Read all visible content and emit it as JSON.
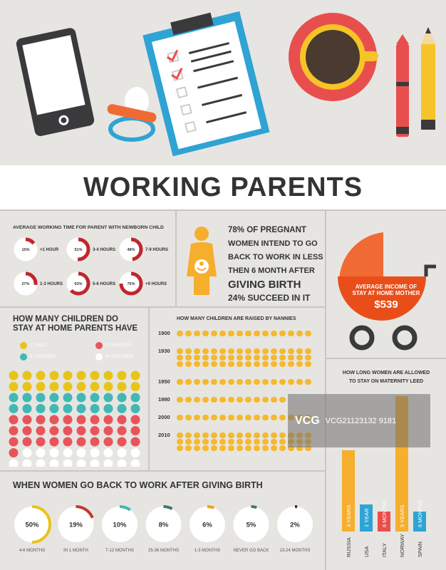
{
  "title": "WORKING PARENTS",
  "working_time": {
    "title": "AVERAGE WORKING TIME FOR PARENT WITH NEWBORN CHILD",
    "items": [
      {
        "pct": "15%",
        "label": ">1 HOUR",
        "value": 0.15
      },
      {
        "pct": "51%",
        "label": "3-4 HOURS",
        "value": 0.51
      },
      {
        "pct": "48%",
        "label": "7-9 HOURS",
        "value": 0.48
      },
      {
        "pct": "27%",
        "label": "1-3 HOURS",
        "value": 0.27
      },
      {
        "pct": "63%",
        "label": "5-6 HOURS",
        "value": 0.63
      },
      {
        "pct": "75%",
        "label": "+9 HOURS",
        "value": 0.75
      }
    ]
  },
  "pregnant": {
    "line1": "78% OF PREGNANT",
    "line2": "WOMEN INTEND TO GO",
    "line3": "BACK TO WORK IN LESS",
    "line4": "THEN 6 MONTH AFTER",
    "line5": "GIVING BIRTH",
    "line6": "24% SUCCEED IN IT"
  },
  "income": {
    "line1": "AVERAGE INCOME OF",
    "line2": "STAY AT HOME MOTHER",
    "amount": "$539"
  },
  "stay_home": {
    "title_line1": "HOW MANY CHILDREN DO",
    "title_line2": "STAY AT HOME PARENTS HAVE",
    "legend": [
      {
        "label": "1 CHILD",
        "color": "#e8c41a"
      },
      {
        "label": "2 CHILDREN",
        "color": "#e9545a"
      },
      {
        "label": "3 CHILDREN",
        "color": "#41b8b4"
      },
      {
        "label": "4+ CHILDREN",
        "color": "#ffffff"
      }
    ],
    "rows": [
      [
        "#e8c41a",
        "#e8c41a",
        "#e8c41a",
        "#e8c41a",
        "#e8c41a",
        "#e8c41a",
        "#e8c41a",
        "#e8c41a",
        "#e8c41a",
        "#e8c41a"
      ],
      [
        "#e8c41a",
        "#e8c41a",
        "#e8c41a",
        "#e8c41a",
        "#e8c41a",
        "#e8c41a",
        "#e8c41a",
        "#e8c41a",
        "#e8c41a",
        "#e8c41a"
      ],
      [
        "#41b8b4",
        "#41b8b4",
        "#41b8b4",
        "#41b8b4",
        "#41b8b4",
        "#41b8b4",
        "#41b8b4",
        "#41b8b4",
        "#41b8b4",
        "#41b8b4"
      ],
      [
        "#41b8b4",
        "#41b8b4",
        "#41b8b4",
        "#41b8b4",
        "#41b8b4",
        "#41b8b4",
        "#41b8b4",
        "#41b8b4",
        "#41b8b4",
        "#41b8b4"
      ],
      [
        "#e9545a",
        "#e9545a",
        "#e9545a",
        "#e9545a",
        "#e9545a",
        "#e9545a",
        "#e9545a",
        "#e9545a",
        "#e9545a",
        "#e9545a"
      ],
      [
        "#e9545a",
        "#e9545a",
        "#e9545a",
        "#e9545a",
        "#e9545a",
        "#e9545a",
        "#e9545a",
        "#e9545a",
        "#e9545a",
        "#e9545a"
      ],
      [
        "#e9545a",
        "#e9545a",
        "#e9545a",
        "#e9545a",
        "#e9545a",
        "#e9545a",
        "#e9545a",
        "#e9545a",
        "#e9545a",
        "#e9545a"
      ],
      [
        "#e9545a",
        "#ffffff",
        "#ffffff",
        "#ffffff",
        "#ffffff",
        "#ffffff",
        "#ffffff",
        "#ffffff",
        "#ffffff",
        "#ffffff"
      ],
      [
        "#ffffff",
        "#ffffff",
        "#ffffff",
        "#ffffff",
        "#ffffff",
        "#ffffff",
        "#ffffff",
        "#ffffff",
        "#ffffff",
        "#ffffff"
      ]
    ]
  },
  "nannies": {
    "title": "HOW MANY CHILDREN ARE RAISED BY  NANNIES",
    "years": [
      {
        "year": "1900",
        "rows": [
          16
        ]
      },
      {
        "year": "1930",
        "rows": [
          16,
          16,
          16
        ]
      },
      {
        "year": "1950",
        "rows": [
          16
        ]
      },
      {
        "year": "1980",
        "rows": [
          13
        ]
      },
      {
        "year": "2000",
        "rows": [
          16
        ]
      },
      {
        "year": "2010",
        "rows": [
          16,
          16,
          16
        ]
      }
    ]
  },
  "maternity": {
    "title_line1": "HOW LONG WOMEN ARE ALLOWED",
    "title_line2": "TO STAY ON MATERNITY LEED",
    "bars": [
      {
        "country": "RUSSIA",
        "label": "3 YEARS",
        "value": 3,
        "color": "#f6ae2d"
      },
      {
        "country": "USA",
        "label": "1 YEAR",
        "value": 1,
        "color": "#2fa3d4"
      },
      {
        "country": "ITALY",
        "label": "6 MONTHS",
        "value": 0.5,
        "color": "#e94e4e"
      },
      {
        "country": "NORWAY",
        "label": "5 YEARS",
        "value": 5,
        "color": "#f6ae2d"
      },
      {
        "country": "SPAIN",
        "label": "6 MONTHS",
        "value": 0.5,
        "color": "#2fa3d4"
      }
    ]
  },
  "back_to_work": {
    "title": "WHEN WOMEN GO BACK TO WORK AFTER GIVING BIRTH",
    "items": [
      {
        "pct": "50%",
        "label": "4-6 MONTHS",
        "value": 0.5,
        "color": "#e8c41a"
      },
      {
        "pct": "19%",
        "label": "IN 1 MONTH",
        "value": 0.19,
        "color": "#c0392b"
      },
      {
        "pct": "10%",
        "label": "7-12 MONTHS",
        "value": 0.1,
        "color": "#41b8b4"
      },
      {
        "pct": "8%",
        "label": "25-36 MONTHS",
        "value": 0.08,
        "color": "#3d7a6a"
      },
      {
        "pct": "6%",
        "label": "1-3 MONTHS",
        "value": 0.06,
        "color": "#e8a21a"
      },
      {
        "pct": "5%",
        "label": "NEVER GO BACK",
        "value": 0.05,
        "color": "#3d7a6a"
      },
      {
        "pct": "2%",
        "label": "13-24 MONTHS",
        "value": 0.02,
        "color": "#333333"
      }
    ]
  },
  "watermark": {
    "logo": "VCG",
    "code": "VCG21123132 9181"
  }
}
